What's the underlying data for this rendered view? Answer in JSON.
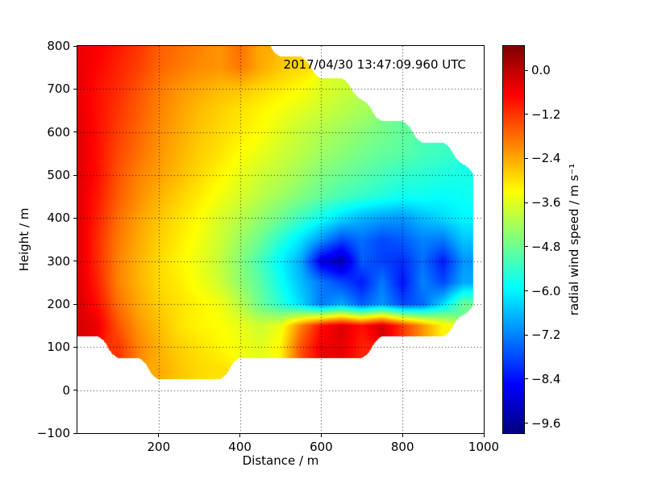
{
  "chart_data": {
    "type": "heatmap",
    "title": "2017/04/30 13:47:09.960 UTC",
    "xlabel": "Distance / m",
    "ylabel": "Height / m",
    "colorbar_label": "radial wind speed / m s⁻¹",
    "colormap": "jet",
    "grid": "dotted",
    "xlim": [
      0,
      1000
    ],
    "ylim": [
      -100,
      800
    ],
    "x_ticks": [
      {
        "v": 200,
        "label": "200"
      },
      {
        "v": 400,
        "label": "400"
      },
      {
        "v": 600,
        "label": "600"
      },
      {
        "v": 800,
        "label": "800"
      },
      {
        "v": 1000,
        "label": "1000"
      }
    ],
    "y_ticks": [
      {
        "v": 800,
        "label": "800"
      },
      {
        "v": 700,
        "label": "700"
      },
      {
        "v": 600,
        "label": "600"
      },
      {
        "v": 500,
        "label": "500"
      },
      {
        "v": 400,
        "label": "400"
      },
      {
        "v": 300,
        "label": "300"
      },
      {
        "v": 200,
        "label": "200"
      },
      {
        "v": 100,
        "label": "100"
      },
      {
        "v": 0,
        "label": "0"
      },
      {
        "v": -100,
        "label": "−100"
      }
    ],
    "colorbar_ticks": [
      {
        "v": 0.0,
        "label": "0.0"
      },
      {
        "v": -1.2,
        "label": "−1.2"
      },
      {
        "v": -2.4,
        "label": "−2.4"
      },
      {
        "v": -3.6,
        "label": "−3.6"
      },
      {
        "v": -4.8,
        "label": "−4.8"
      },
      {
        "v": -6.0,
        "label": "−6.0"
      },
      {
        "v": -7.2,
        "label": "−7.2"
      },
      {
        "v": -8.4,
        "label": "−8.4"
      },
      {
        "v": -9.6,
        "label": "−9.6"
      }
    ],
    "gridlines_x": [
      200,
      400,
      600,
      800
    ],
    "gridlines_y": [
      0,
      100,
      200,
      300,
      400,
      500,
      600,
      700
    ],
    "color_range": [
      -9.87,
      0.66
    ],
    "grid_x_start": 0,
    "grid_x_step": 50,
    "grid_y_start": 800,
    "grid_y_step": -50,
    "values": [
      [
        -0.5,
        -0.6,
        -0.9,
        -1.2,
        -1.6,
        -1.8,
        -2.0,
        -2.2,
        -1.8,
        -2.4,
        null,
        null,
        null,
        null,
        null,
        null,
        null,
        null,
        null,
        null,
        null
      ],
      [
        -0.4,
        -0.7,
        -1.0,
        -1.3,
        -1.7,
        -1.9,
        -2.1,
        -2.2,
        -1.9,
        -2.4,
        -2.7,
        -2.9,
        null,
        null,
        null,
        null,
        null,
        null,
        null,
        null,
        null
      ],
      [
        -0.4,
        -0.8,
        -1.1,
        -1.5,
        -1.9,
        -2.2,
        -2.4,
        -2.6,
        -2.7,
        -2.9,
        -3.1,
        -3.3,
        -3.6,
        -3.8,
        null,
        null,
        null,
        null,
        null,
        null,
        null
      ],
      [
        -0.4,
        -0.8,
        -1.2,
        -1.6,
        -2.0,
        -2.3,
        -2.6,
        -2.8,
        -3.0,
        -3.2,
        -3.4,
        -3.6,
        -3.8,
        -4.0,
        -4.2,
        null,
        null,
        null,
        null,
        null,
        null
      ],
      [
        -0.3,
        -0.8,
        -1.3,
        -1.7,
        -2.1,
        -2.4,
        -2.7,
        -2.9,
        -3.1,
        -3.3,
        -3.6,
        -3.9,
        -4.1,
        -4.3,
        -4.5,
        -4.7,
        -4.9,
        null,
        null,
        null,
        null
      ],
      [
        -0.3,
        -0.8,
        -1.4,
        -1.8,
        -2.2,
        -2.5,
        -2.8,
        -3.0,
        -3.3,
        -3.5,
        -3.8,
        -4.0,
        -4.3,
        -4.5,
        -4.7,
        -4.9,
        -5.0,
        -5.2,
        -5.3,
        null,
        null
      ],
      [
        -0.3,
        -0.8,
        -1.5,
        -2.0,
        -2.3,
        -2.6,
        -2.9,
        -3.2,
        -3.5,
        -3.8,
        -4.0,
        -4.3,
        -4.6,
        -4.8,
        -5.0,
        -5.2,
        -5.4,
        -5.5,
        -5.6,
        -5.7,
        null
      ],
      [
        -0.3,
        -0.9,
        -1.6,
        -2.1,
        -2.5,
        -2.8,
        -3.1,
        -3.4,
        -3.7,
        -4.0,
        -4.3,
        -4.6,
        -4.9,
        -5.2,
        -5.4,
        -5.6,
        -5.8,
        -5.8,
        -5.9,
        -5.8,
        null
      ],
      [
        -0.3,
        -1.0,
        -1.8,
        -2.3,
        -2.7,
        -3.0,
        -3.3,
        -3.7,
        -4.0,
        -4.4,
        -4.8,
        -5.3,
        -5.8,
        -6.3,
        -6.7,
        -6.9,
        -7.0,
        -6.6,
        -6.3,
        -6.0,
        null
      ],
      [
        -0.3,
        -1.1,
        -1.9,
        -2.4,
        -2.8,
        -3.1,
        -3.4,
        -3.8,
        -4.3,
        -4.8,
        -5.5,
        -6.2,
        -7.0,
        -7.8,
        -7.4,
        -7.8,
        -7.6,
        -7.2,
        -7.3,
        -6.5,
        null
      ],
      [
        -0.3,
        -1.1,
        -2.0,
        -2.5,
        -2.9,
        -3.2,
        -3.5,
        -3.9,
        -4.5,
        -5.2,
        -6.0,
        -6.8,
        -8.8,
        -9.4,
        -7.6,
        -7.9,
        -8.1,
        -7.4,
        -8.3,
        -7.0,
        null
      ],
      [
        -0.25,
        -1.0,
        -2.0,
        -2.5,
        -2.9,
        -3.1,
        -3.4,
        -3.8,
        -4.4,
        -5.0,
        -5.8,
        -6.6,
        -7.3,
        -7.8,
        -8.3,
        -7.3,
        -8.4,
        -7.2,
        -7.8,
        -6.8,
        null
      ],
      [
        -0.2,
        -0.8,
        -1.8,
        -2.4,
        -2.8,
        -3.0,
        -3.2,
        -3.4,
        -4.0,
        -4.8,
        -5.5,
        -6.3,
        -7.3,
        -6.8,
        -7.6,
        -7.0,
        -7.8,
        -7.5,
        -6.3,
        -4.8,
        null
      ],
      [
        -0.2,
        -0.5,
        -1.5,
        -2.2,
        -2.6,
        -3.0,
        -3.2,
        -3.3,
        -3.5,
        -3.8,
        -3.5,
        -2.0,
        -0.8,
        -0.3,
        -0.8,
        -0.2,
        -1.2,
        -2.2,
        -3.2,
        null,
        null
      ],
      [
        null,
        null,
        -1.2,
        -2.0,
        -2.5,
        -2.8,
        -3.0,
        -3.2,
        -3.4,
        -3.6,
        -3.2,
        -1.5,
        -0.5,
        -0.4,
        -1.0,
        null,
        null,
        null,
        null,
        null,
        null
      ],
      [
        null,
        null,
        null,
        null,
        -2.4,
        -2.7,
        -2.9,
        -3.0,
        null,
        null,
        null,
        null,
        null,
        null,
        null,
        null,
        null,
        null,
        null,
        null,
        null
      ],
      [
        null,
        null,
        null,
        null,
        null,
        null,
        null,
        null,
        null,
        null,
        null,
        null,
        null,
        null,
        null,
        null,
        null,
        null,
        null,
        null,
        null
      ],
      [
        null,
        null,
        null,
        null,
        null,
        null,
        null,
        null,
        null,
        null,
        null,
        null,
        null,
        null,
        null,
        null,
        null,
        null,
        null,
        null,
        null
      ],
      [
        null,
        null,
        null,
        null,
        null,
        null,
        null,
        null,
        null,
        null,
        null,
        null,
        null,
        null,
        null,
        null,
        null,
        null,
        null,
        null,
        null
      ]
    ]
  }
}
